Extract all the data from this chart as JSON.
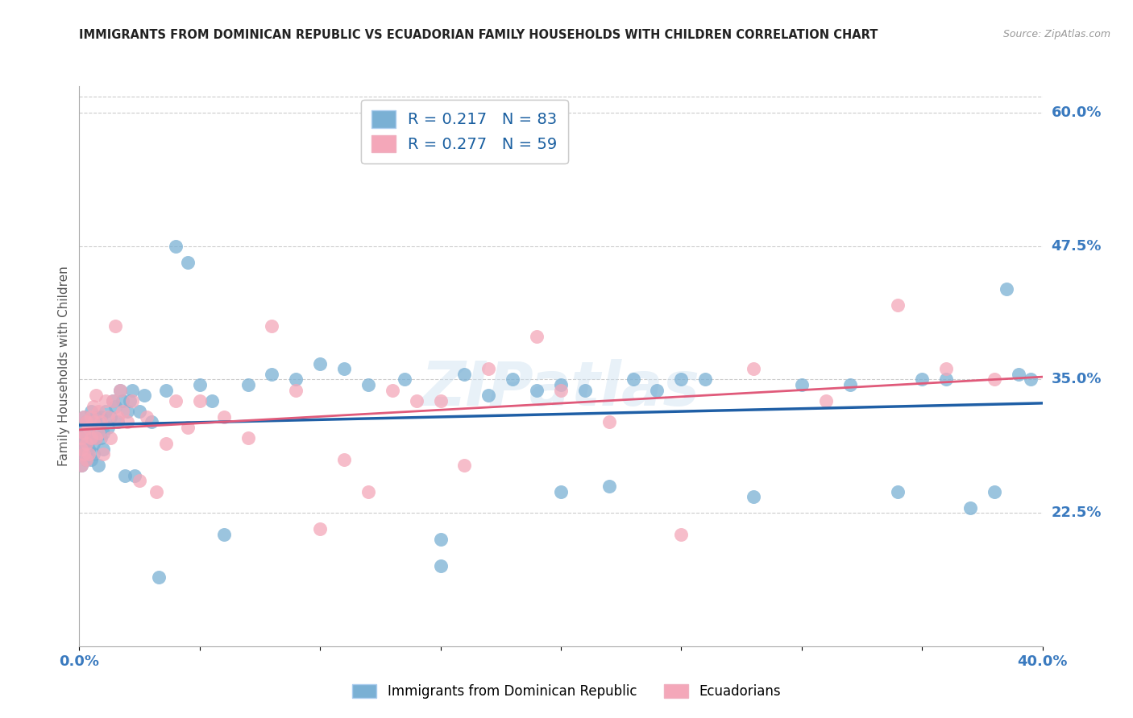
{
  "title": "IMMIGRANTS FROM DOMINICAN REPUBLIC VS ECUADORIAN FAMILY HOUSEHOLDS WITH CHILDREN CORRELATION CHART",
  "source": "Source: ZipAtlas.com",
  "ylabel": "Family Households with Children",
  "xlim": [
    0.0,
    0.4
  ],
  "ylim": [
    0.1,
    0.625
  ],
  "right_yticks": [
    0.6,
    0.475,
    0.35,
    0.225
  ],
  "right_yticklabels": [
    "60.0%",
    "47.5%",
    "35.0%",
    "22.5%"
  ],
  "xticks": [
    0.0,
    0.05,
    0.1,
    0.15,
    0.2,
    0.25,
    0.3,
    0.35,
    0.4
  ],
  "xticklabels": [
    "0.0%",
    "",
    "",
    "",
    "",
    "",
    "",
    "",
    "40.0%"
  ],
  "blue_color": "#7ab0d4",
  "pink_color": "#f4a7b9",
  "blue_line_color": "#1f5fa6",
  "pink_line_color": "#e05a7a",
  "legend_label_blue": "R = 0.217   N = 83",
  "legend_label_pink": "R = 0.277   N = 59",
  "bottom_legend_blue": "Immigrants from Dominican Republic",
  "bottom_legend_pink": "Ecuadorians",
  "blue_scatter_x": [
    0.001,
    0.001,
    0.001,
    0.002,
    0.002,
    0.002,
    0.002,
    0.003,
    0.003,
    0.003,
    0.003,
    0.004,
    0.004,
    0.004,
    0.005,
    0.005,
    0.005,
    0.006,
    0.006,
    0.006,
    0.007,
    0.007,
    0.008,
    0.008,
    0.009,
    0.009,
    0.01,
    0.01,
    0.011,
    0.012,
    0.013,
    0.014,
    0.015,
    0.016,
    0.017,
    0.018,
    0.019,
    0.02,
    0.021,
    0.022,
    0.023,
    0.025,
    0.027,
    0.03,
    0.033,
    0.036,
    0.04,
    0.045,
    0.05,
    0.055,
    0.06,
    0.07,
    0.08,
    0.09,
    0.1,
    0.11,
    0.12,
    0.135,
    0.15,
    0.16,
    0.17,
    0.18,
    0.19,
    0.2,
    0.21,
    0.22,
    0.24,
    0.26,
    0.28,
    0.3,
    0.32,
    0.34,
    0.35,
    0.36,
    0.37,
    0.38,
    0.385,
    0.39,
    0.395,
    0.2,
    0.23,
    0.25,
    0.15
  ],
  "blue_scatter_y": [
    0.285,
    0.3,
    0.27,
    0.295,
    0.305,
    0.28,
    0.315,
    0.29,
    0.31,
    0.275,
    0.295,
    0.285,
    0.3,
    0.31,
    0.275,
    0.295,
    0.32,
    0.29,
    0.31,
    0.28,
    0.315,
    0.295,
    0.305,
    0.27,
    0.295,
    0.315,
    0.285,
    0.3,
    0.32,
    0.305,
    0.315,
    0.33,
    0.325,
    0.31,
    0.34,
    0.33,
    0.26,
    0.32,
    0.33,
    0.34,
    0.26,
    0.32,
    0.335,
    0.31,
    0.165,
    0.34,
    0.475,
    0.46,
    0.345,
    0.33,
    0.205,
    0.345,
    0.355,
    0.35,
    0.365,
    0.36,
    0.345,
    0.35,
    0.175,
    0.355,
    0.335,
    0.35,
    0.34,
    0.345,
    0.34,
    0.25,
    0.34,
    0.35,
    0.24,
    0.345,
    0.345,
    0.245,
    0.35,
    0.35,
    0.23,
    0.245,
    0.435,
    0.355,
    0.35,
    0.245,
    0.35,
    0.35,
    0.2
  ],
  "pink_scatter_x": [
    0.001,
    0.001,
    0.001,
    0.002,
    0.002,
    0.002,
    0.003,
    0.003,
    0.003,
    0.004,
    0.004,
    0.005,
    0.005,
    0.006,
    0.006,
    0.007,
    0.007,
    0.008,
    0.008,
    0.009,
    0.01,
    0.011,
    0.012,
    0.013,
    0.014,
    0.015,
    0.016,
    0.017,
    0.018,
    0.02,
    0.022,
    0.025,
    0.028,
    0.032,
    0.036,
    0.04,
    0.045,
    0.05,
    0.06,
    0.07,
    0.08,
    0.09,
    0.1,
    0.11,
    0.13,
    0.15,
    0.17,
    0.2,
    0.22,
    0.25,
    0.28,
    0.31,
    0.34,
    0.36,
    0.38,
    0.12,
    0.14,
    0.16,
    0.19
  ],
  "pink_scatter_y": [
    0.285,
    0.295,
    0.27,
    0.3,
    0.315,
    0.28,
    0.31,
    0.29,
    0.275,
    0.305,
    0.28,
    0.315,
    0.295,
    0.325,
    0.31,
    0.335,
    0.295,
    0.32,
    0.3,
    0.31,
    0.28,
    0.33,
    0.315,
    0.295,
    0.33,
    0.4,
    0.315,
    0.34,
    0.32,
    0.31,
    0.33,
    0.255,
    0.315,
    0.245,
    0.29,
    0.33,
    0.305,
    0.33,
    0.315,
    0.295,
    0.4,
    0.34,
    0.21,
    0.275,
    0.34,
    0.33,
    0.36,
    0.34,
    0.31,
    0.205,
    0.36,
    0.33,
    0.42,
    0.36,
    0.35,
    0.245,
    0.33,
    0.27,
    0.39
  ]
}
